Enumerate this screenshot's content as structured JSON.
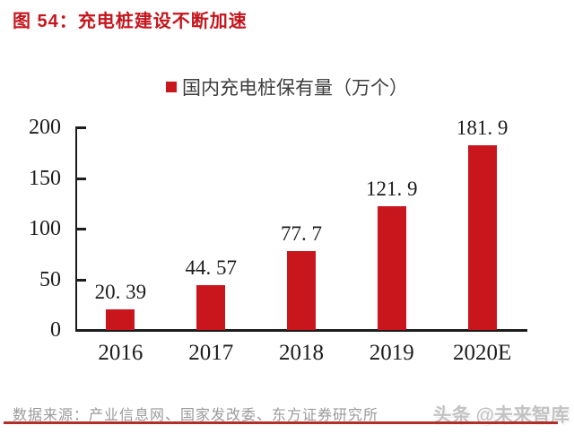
{
  "title": {
    "prefix": "图 54：",
    "text": "充电桩建设不断加速"
  },
  "legend": {
    "label": "国内充电桩保有量（万个）",
    "marker_color": "#c9161d"
  },
  "chart_data": {
    "type": "bar",
    "categories": [
      "2016",
      "2017",
      "2018",
      "2019",
      "2020E"
    ],
    "values": [
      20.39,
      44.57,
      77.7,
      121.9,
      181.9
    ],
    "value_labels": [
      "20. 39",
      "44. 57",
      "77. 7",
      "121. 9",
      "181. 9"
    ],
    "title": "国内充电桩保有量（万个）",
    "xlabel": "",
    "ylabel": "",
    "ylim": [
      0,
      200
    ],
    "yticks": [
      0,
      50,
      100,
      150,
      200
    ],
    "bar_color": "#c9161d",
    "grid": false,
    "legend_position": "top-center"
  },
  "footer": {
    "source": "数据来源：产业信息网、国家发改委、东方证券研究所",
    "watermark": "头条 @未来智库"
  },
  "colors": {
    "accent_red": "#c9161d",
    "title_red": "#c5161d",
    "divider_red": "#b02f28",
    "axis_black": "#1c1c1c",
    "source_gray": "#9a9a9a",
    "watermark_gray": "#c3c3c3"
  }
}
